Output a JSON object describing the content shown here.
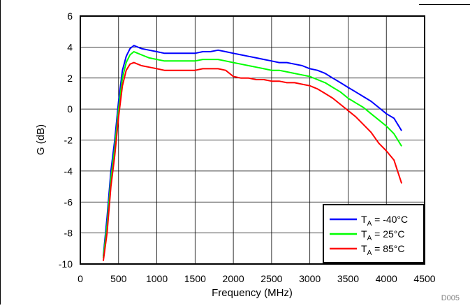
{
  "chart_data": {
    "type": "line",
    "title": "",
    "xlabel": "Frequency (MHz)",
    "ylabel": "G (dB)",
    "xlim": [
      0,
      4500
    ],
    "ylim": [
      -10,
      6
    ],
    "x_ticks": [
      "0",
      "500",
      "1000",
      "1500",
      "2000",
      "2500",
      "3000",
      "3500",
      "4000",
      "4500"
    ],
    "y_ticks": [
      "6",
      "4",
      "2",
      "0",
      "-2",
      "-4",
      "-6",
      "-8",
      "-10"
    ],
    "grid": true,
    "legend_position": "bottom-right",
    "figure_id": "D005",
    "series": [
      {
        "label_main": "T",
        "label_sub": "A",
        "label_rest": " = -40°C",
        "color": "#0000ff",
        "x": [
          300,
          350,
          400,
          450,
          500,
          550,
          600,
          650,
          700,
          750,
          800,
          900,
          1000,
          1100,
          1200,
          1300,
          1400,
          1500,
          1600,
          1700,
          1800,
          1900,
          2000,
          2100,
          2200,
          2300,
          2400,
          2500,
          2600,
          2700,
          2800,
          2900,
          3000,
          3100,
          3200,
          3300,
          3400,
          3500,
          3600,
          3700,
          3800,
          3900,
          4000,
          4100,
          4200
        ],
        "y": [
          -9.5,
          -7.0,
          -4.0,
          -2.0,
          0.5,
          2.5,
          3.4,
          3.9,
          4.1,
          4.0,
          3.9,
          3.8,
          3.7,
          3.6,
          3.6,
          3.6,
          3.6,
          3.6,
          3.7,
          3.7,
          3.8,
          3.7,
          3.6,
          3.5,
          3.4,
          3.3,
          3.2,
          3.1,
          3.0,
          3.0,
          2.9,
          2.8,
          2.6,
          2.5,
          2.3,
          2.0,
          1.7,
          1.4,
          1.1,
          0.8,
          0.5,
          0.1,
          -0.3,
          -0.6,
          -1.4
        ]
      },
      {
        "label_main": "T",
        "label_sub": "A",
        "label_rest": " = 25°C",
        "color": "#00ff00",
        "x": [
          300,
          350,
          400,
          450,
          500,
          550,
          600,
          650,
          700,
          750,
          800,
          900,
          1000,
          1100,
          1200,
          1300,
          1400,
          1500,
          1600,
          1700,
          1800,
          1900,
          2000,
          2100,
          2200,
          2300,
          2400,
          2500,
          2600,
          2700,
          2800,
          2900,
          3000,
          3100,
          3200,
          3300,
          3400,
          3500,
          3600,
          3700,
          3800,
          3900,
          4000,
          4100,
          4200
        ],
        "y": [
          -9.6,
          -7.5,
          -4.5,
          -2.5,
          0.0,
          2.0,
          3.0,
          3.5,
          3.7,
          3.6,
          3.5,
          3.3,
          3.2,
          3.1,
          3.1,
          3.1,
          3.1,
          3.1,
          3.2,
          3.2,
          3.2,
          3.1,
          3.0,
          2.9,
          2.8,
          2.7,
          2.6,
          2.5,
          2.5,
          2.4,
          2.3,
          2.2,
          2.1,
          1.9,
          1.7,
          1.4,
          1.1,
          0.7,
          0.4,
          0.1,
          -0.3,
          -0.7,
          -1.1,
          -1.6,
          -2.4
        ]
      },
      {
        "label_main": "T",
        "label_sub": "A",
        "label_rest": " = 85°C",
        "color": "#ff0000",
        "x": [
          300,
          350,
          400,
          450,
          500,
          550,
          600,
          650,
          700,
          750,
          800,
          900,
          1000,
          1100,
          1200,
          1300,
          1400,
          1500,
          1600,
          1700,
          1800,
          1900,
          2000,
          2100,
          2200,
          2300,
          2400,
          2500,
          2600,
          2700,
          2800,
          2900,
          3000,
          3100,
          3200,
          3300,
          3400,
          3500,
          3600,
          3700,
          3800,
          3900,
          4000,
          4100,
          4200
        ],
        "y": [
          -9.8,
          -8.0,
          -5.0,
          -3.0,
          -0.5,
          1.5,
          2.5,
          2.9,
          3.0,
          2.9,
          2.8,
          2.7,
          2.6,
          2.5,
          2.5,
          2.5,
          2.5,
          2.5,
          2.6,
          2.6,
          2.6,
          2.5,
          2.1,
          2.0,
          2.0,
          1.9,
          1.9,
          1.8,
          1.8,
          1.7,
          1.7,
          1.6,
          1.5,
          1.3,
          1.0,
          0.7,
          0.3,
          -0.1,
          -0.5,
          -1.0,
          -1.5,
          -2.2,
          -2.7,
          -3.3,
          -4.8
        ]
      }
    ]
  }
}
